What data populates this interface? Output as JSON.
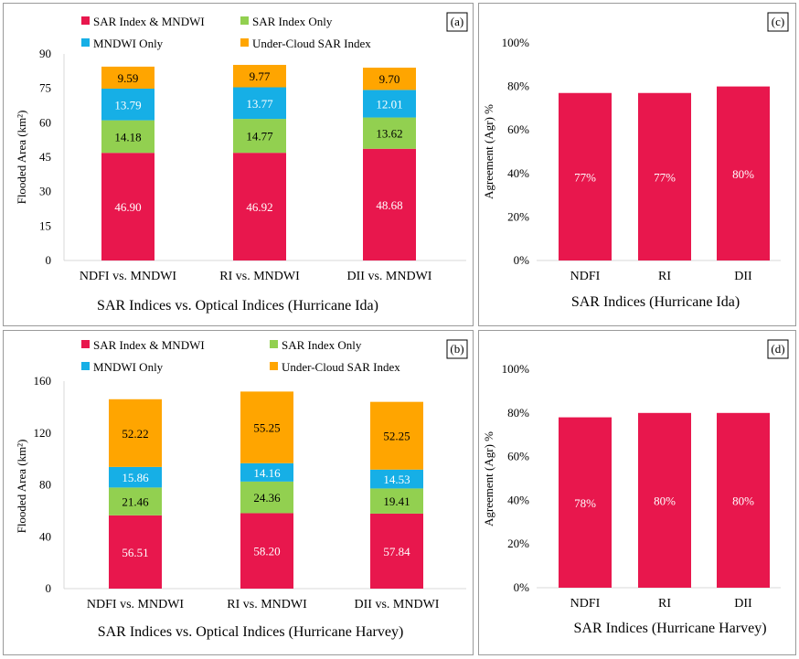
{
  "colors": {
    "both": "#e8174d",
    "sar_only": "#92d050",
    "mndwi_only": "#16afe6",
    "under_cloud": "#ffa500",
    "agreement": "#e8174d"
  },
  "chart_data": [
    {
      "panel": "(a)",
      "type": "bar",
      "stacked": true,
      "title": "",
      "xlabel": "SAR Indices vs. Optical Indices (Hurricane Ida)",
      "ylabel": "Flooded Area (km²)",
      "ylim": [
        0,
        90
      ],
      "yticks": [
        0,
        15,
        30,
        45,
        60,
        75,
        90
      ],
      "categories": [
        "NDFI vs. MNDWI",
        "RI vs. MNDWI",
        "DII vs. MNDWI"
      ],
      "series": [
        {
          "name": "SAR Index & MNDWI",
          "values": [
            46.9,
            46.92,
            48.68
          ],
          "labels": [
            "46.90",
            "46.92",
            "48.68"
          ]
        },
        {
          "name": "SAR Index Only",
          "values": [
            14.18,
            14.77,
            13.62
          ],
          "labels": [
            "14.18",
            "14.77",
            "13.62"
          ]
        },
        {
          "name": "MNDWI Only",
          "values": [
            13.79,
            13.77,
            12.01
          ],
          "labels": [
            "13.79",
            "13.77",
            "12.01"
          ]
        },
        {
          "name": "Under-Cloud SAR Index",
          "values": [
            9.59,
            9.77,
            9.7
          ],
          "labels": [
            "9.59",
            "9.77",
            "9.70"
          ]
        }
      ],
      "legend": "top",
      "grid": false
    },
    {
      "panel": "(b)",
      "type": "bar",
      "stacked": true,
      "title": "",
      "xlabel": "SAR Indices vs. Optical Indices (Hurricane Harvey)",
      "ylabel": "Flooded Area (km²)",
      "ylim": [
        0,
        160
      ],
      "yticks": [
        0,
        40,
        80,
        120,
        160
      ],
      "categories": [
        "NDFI vs. MNDWI",
        "RI vs. MNDWI",
        "DII vs. MNDWI"
      ],
      "series": [
        {
          "name": "SAR Index & MNDWI",
          "values": [
            56.51,
            58.2,
            57.84
          ],
          "labels": [
            "56.51",
            "58.20",
            "57.84"
          ]
        },
        {
          "name": "SAR Index Only",
          "values": [
            21.46,
            24.36,
            19.41
          ],
          "labels": [
            "21.46",
            "24.36",
            "19.41"
          ]
        },
        {
          "name": "MNDWI Only",
          "values": [
            15.86,
            14.16,
            14.53
          ],
          "labels": [
            "15.86",
            "14.16",
            "14.53"
          ]
        },
        {
          "name": "Under-Cloud SAR Index",
          "values": [
            52.22,
            55.25,
            52.25
          ],
          "labels": [
            "52.22",
            "55.25",
            "52.25"
          ]
        }
      ],
      "legend": "top",
      "grid": false
    },
    {
      "panel": "(c)",
      "type": "bar",
      "title": "",
      "xlabel": "SAR Indices (Hurricane Ida)",
      "ylabel": "Agreement (Agr) %",
      "ylim": [
        0,
        100
      ],
      "yticks": [
        "0%",
        "20%",
        "40%",
        "60%",
        "80%",
        "100%"
      ],
      "categories": [
        "NDFI",
        "RI",
        "DII"
      ],
      "values": [
        77,
        77,
        80
      ],
      "labels": [
        "77%",
        "77%",
        "80%"
      ],
      "grid": false
    },
    {
      "panel": "(d)",
      "type": "bar",
      "title": "",
      "xlabel": "SAR Indices (Hurricane Harvey)",
      "ylabel": "Agreement (Agr) %",
      "ylim": [
        0,
        100
      ],
      "yticks": [
        "0%",
        "20%",
        "40%",
        "60%",
        "80%",
        "100%"
      ],
      "categories": [
        "NDFI",
        "RI",
        "DII"
      ],
      "values": [
        78,
        80,
        80
      ],
      "labels": [
        "78%",
        "80%",
        "80%"
      ],
      "grid": false
    }
  ]
}
